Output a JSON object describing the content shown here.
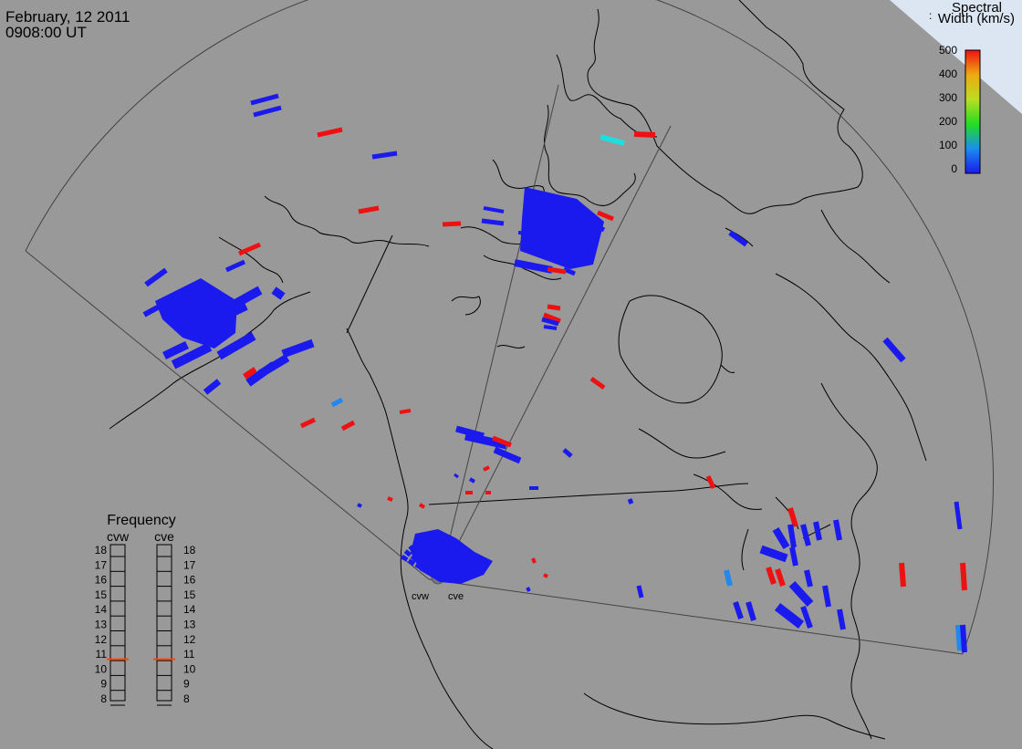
{
  "header": {
    "date": "February, 12 2011",
    "time": "0908:00 UT"
  },
  "colorbar": {
    "title_line1": "Spectral",
    "title_line2": "Width (km/s)",
    "colon": ":",
    "ticks": [
      "500",
      "400",
      "300",
      "200",
      "100",
      "0"
    ],
    "range": [
      0,
      500
    ]
  },
  "radars": [
    {
      "name": "cvw",
      "frequency_mhz": 10.6
    },
    {
      "name": "cve",
      "frequency_mhz": 10.6
    }
  ],
  "frequency_panel": {
    "title": "Frequency",
    "scale_labels": [
      "18",
      "17",
      "16",
      "15",
      "14",
      "13",
      "12",
      "11",
      "10",
      "9",
      "8"
    ]
  },
  "colors": {
    "background": "#999999",
    "coastline": "#000000",
    "grid": "#444444",
    "low_width": "#1a1aee",
    "mid_width": "#2288ee",
    "cyan_width": "#22dddd",
    "high_width": "#ee1111",
    "freq_marker": "#ff4400"
  }
}
